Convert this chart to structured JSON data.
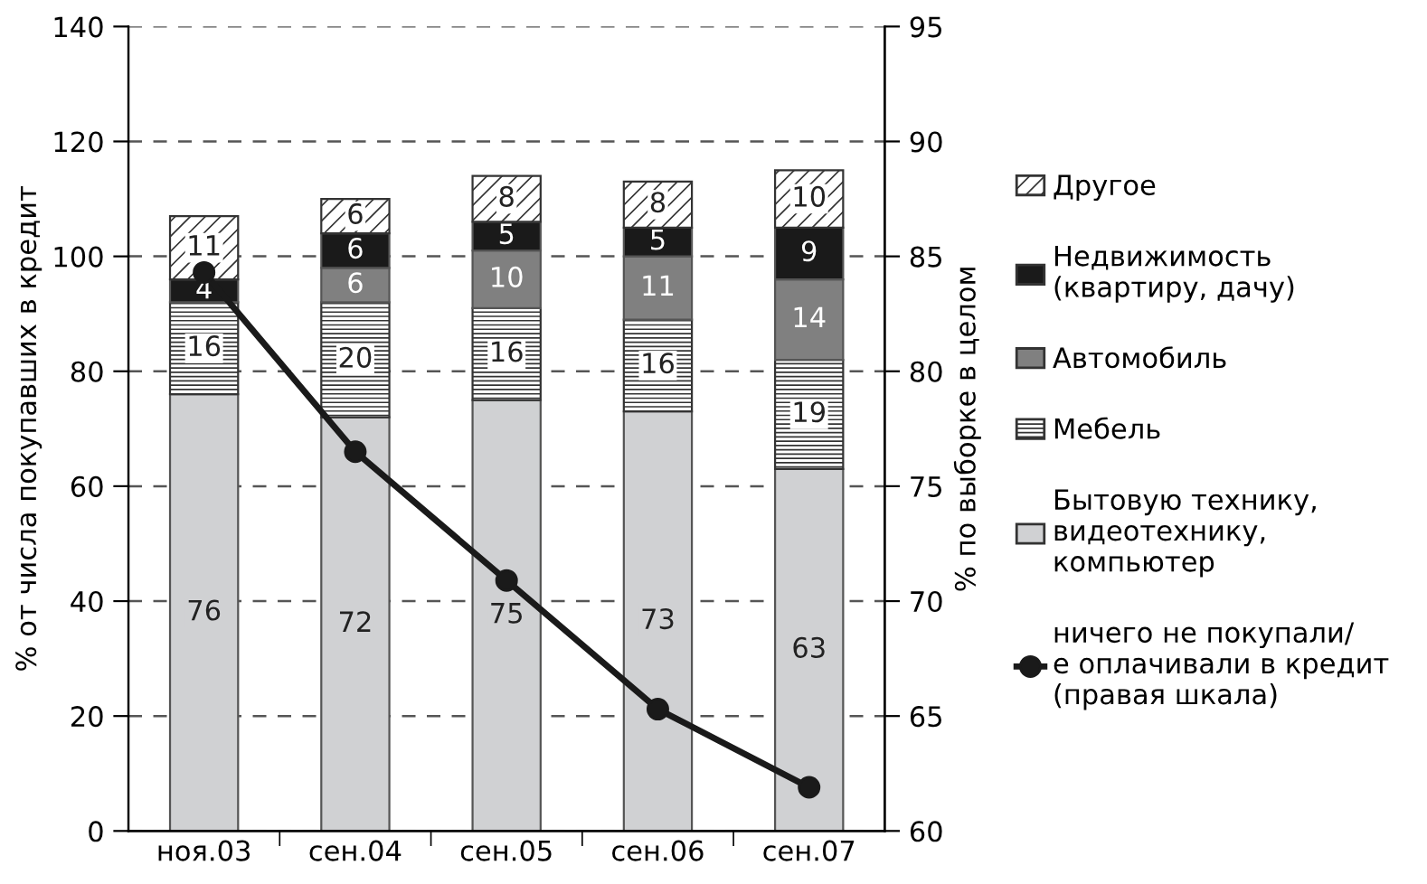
{
  "chart_data": {
    "type": "bar",
    "stacked": true,
    "categories": [
      "ноя.03",
      "сен.04",
      "сен.05",
      "сен.06",
      "сен.07"
    ],
    "ylabel": "% от числа покупавших в кредит",
    "y2label": "% по выборке в целом",
    "ylim": [
      0,
      140
    ],
    "yticks": [
      0,
      20,
      40,
      60,
      80,
      100,
      120,
      140
    ],
    "y2lim": [
      60,
      95
    ],
    "y2ticks": [
      60,
      65,
      70,
      75,
      80,
      85,
      90,
      95
    ],
    "grid": "y",
    "legend": "right",
    "series": [
      {
        "name": "Бытовую технику,\nвидеотехнику,\nкомпьютер",
        "color": "#d0d1d3",
        "values": [
          76,
          72,
          75,
          73,
          63
        ],
        "value_labels": [
          "76",
          "72",
          "75",
          "73",
          "63"
        ]
      },
      {
        "name": "Мебель",
        "color": "#333333",
        "values": [
          16,
          20,
          16,
          16,
          19
        ],
        "value_labels": [
          "16",
          "20",
          "16",
          "16",
          "19"
        ]
      },
      {
        "name": "Автомобиль",
        "color": "#808080",
        "values": [
          null,
          6,
          10,
          11,
          14
        ],
        "value_labels": [
          null,
          "6",
          "10",
          "11",
          "14"
        ]
      },
      {
        "name": "Недвижимость\n(квартиру, дачу)",
        "color": "#1a1a1a",
        "values": [
          4,
          6,
          5,
          5,
          9
        ],
        "value_labels": [
          "4",
          "6",
          "5",
          "5",
          "9"
        ]
      },
      {
        "name": "Другое",
        "color": "#333333",
        "values": [
          11,
          6,
          8,
          8,
          10
        ],
        "value_labels": [
          "11",
          "6",
          "8",
          "8",
          "10"
        ]
      },
      {
        "name": "ничего не покупали/\nе оплачивали в кредит\n(правая шкала)",
        "type": "line",
        "axis": "y2",
        "color": "#1a1a1a",
        "marker": "circle",
        "values": [
          84.3,
          76.5,
          70.9,
          65.3,
          61.9
        ]
      }
    ]
  }
}
